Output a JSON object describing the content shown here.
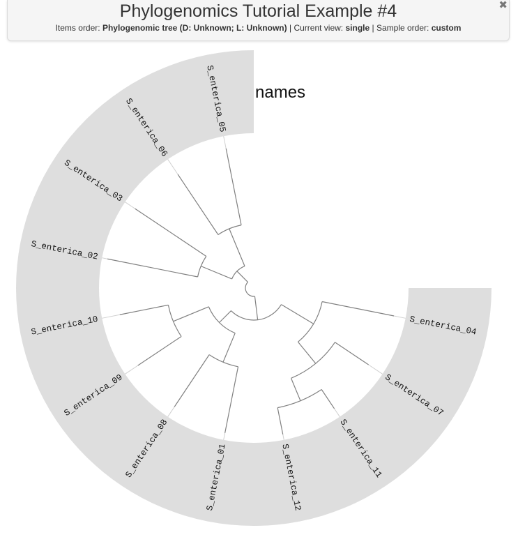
{
  "header": {
    "title": "Phylogenomics Tutorial Example #4",
    "items_order_label": "Items order:",
    "items_order_value": "Phylogenomic tree (D: Unknown; L: Unknown)",
    "sep1": "|",
    "current_view_label": "Current view:",
    "current_view_value": "single",
    "sep2": "|",
    "sample_order_label": "Sample order:",
    "sample_order_value": "custom",
    "close_icon": "close-icon"
  },
  "layer": {
    "title": "names",
    "fill_color": "#dedede"
  },
  "tree": {
    "branch_color": "#808080",
    "guide_color": "#d0d0d0"
  },
  "leaves": [
    "S_enterica_04",
    "S_enterica_07",
    "S_enterica_11",
    "S_enterica_12",
    "S_enterica_01",
    "S_enterica_08",
    "S_enterica_09",
    "S_enterica_10",
    "S_enterica_02",
    "S_enterica_03",
    "S_enterica_06",
    "S_enterica_05"
  ]
}
